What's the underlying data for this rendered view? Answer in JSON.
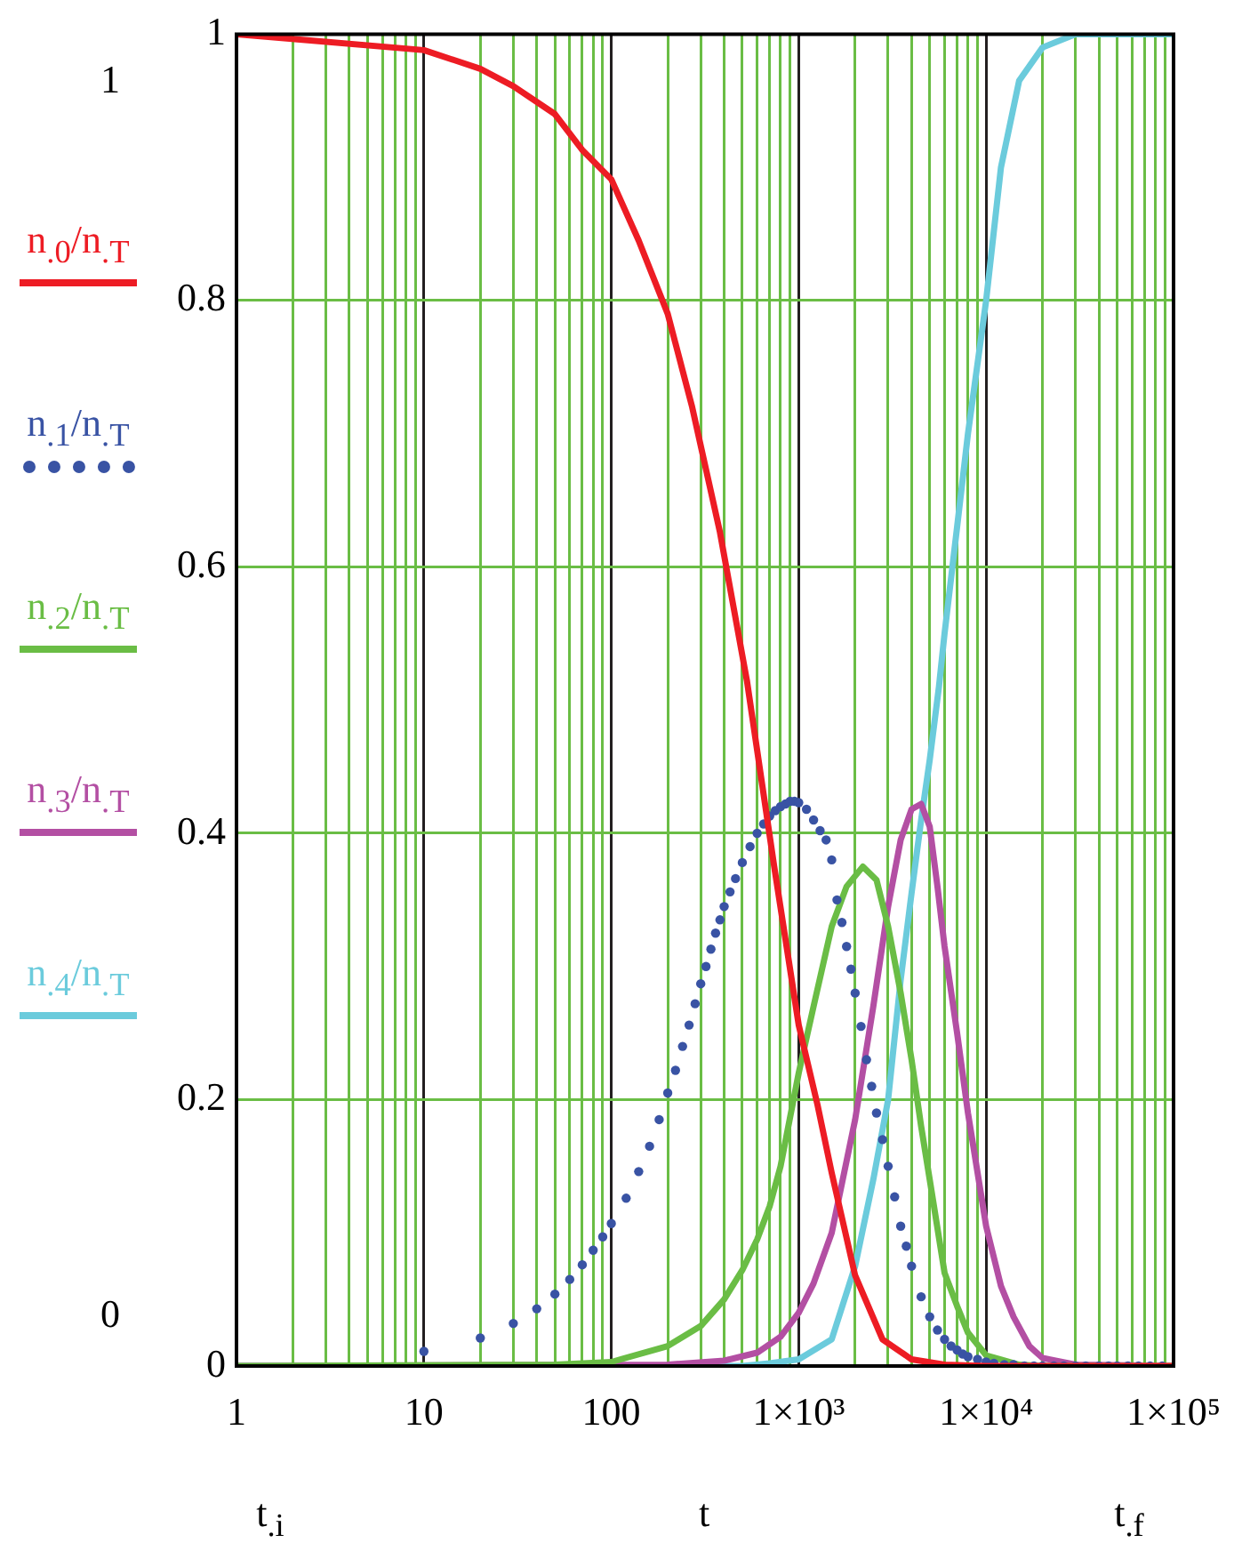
{
  "chart_data": {
    "type": "line",
    "xlabel": "t",
    "log": "x",
    "grid": true,
    "legend": "left",
    "marker": "none",
    "line_style": "solid",
    "xlim": [
      1,
      100000
    ],
    "xticks": [
      1,
      {
        "value": 2,
        "label": null
      },
      {
        "value": 3,
        "label": null
      },
      {
        "value": 4,
        "label": null
      },
      {
        "value": 5,
        "label": null
      },
      {
        "value": 6,
        "label": null
      },
      {
        "value": 7,
        "label": null
      },
      {
        "value": 8,
        "label": null
      },
      {
        "value": 9,
        "label": null
      },
      10,
      {
        "value": 20,
        "label": null
      },
      {
        "value": 30,
        "label": null
      },
      {
        "value": 40,
        "label": null
      },
      {
        "value": 50,
        "label": null
      },
      {
        "value": 60,
        "label": null
      },
      {
        "value": 70,
        "label": null
      },
      {
        "value": 80,
        "label": null
      },
      {
        "value": 90,
        "label": null
      },
      100,
      {
        "value": 200,
        "label": null
      },
      {
        "value": 300,
        "label": null
      },
      {
        "value": 400,
        "label": null
      },
      {
        "value": 500,
        "label": null
      },
      {
        "value": 600,
        "label": null
      },
      {
        "value": 700,
        "label": null
      },
      {
        "value": 800,
        "label": null
      },
      {
        "value": 900,
        "label": null
      },
      {
        "value": 1000,
        "label": "1×10³"
      },
      {
        "value": 2000,
        "label": null
      },
      {
        "value": 3000,
        "label": null
      },
      {
        "value": 4000,
        "label": null
      },
      {
        "value": 5000,
        "label": null
      },
      {
        "value": 6000,
        "label": null
      },
      {
        "value": 7000,
        "label": null
      },
      {
        "value": 8000,
        "label": null
      },
      {
        "value": 9000,
        "label": null
      },
      {
        "value": 10000,
        "label": "1×10⁴"
      },
      {
        "value": 20000,
        "label": null
      },
      {
        "value": 30000,
        "label": null
      },
      {
        "value": 40000,
        "label": null
      },
      {
        "value": 50000,
        "label": null
      },
      {
        "value": 60000,
        "label": null
      },
      {
        "value": 70000,
        "label": null
      },
      {
        "value": 80000,
        "label": null
      },
      {
        "value": 90000,
        "label": null
      },
      {
        "value": 100000,
        "label": "1×10⁵"
      }
    ],
    "ylim": [
      0,
      1
    ],
    "yticks": [
      0,
      0.2,
      0.4,
      0.6,
      0.8,
      1
    ],
    "annotations": [
      "1",
      "0",
      "t$_{.i}$",
      "t$_{.f}$"
    ],
    "series": [
      {
        "name": "n$_{.0}$/n$_{.T}$",
        "color": "#ed1c24",
        "x": [
          1,
          10,
          20,
          30,
          50,
          70,
          100,
          140,
          200,
          270,
          380,
          530,
          740,
          1000,
          1260,
          1500,
          2000,
          2800,
          4000,
          6000,
          10000,
          100000
        ],
        "values": [
          1,
          0.988,
          0.974,
          0.961,
          0.94,
          0.913,
          0.891,
          0.845,
          0.79,
          0.72,
          0.626,
          0.514,
          0.375,
          0.256,
          0.196,
          0.145,
          0.068,
          0.02,
          0.005,
          0.001,
          0,
          0
        ]
      },
      {
        "name": "n$_{.1}$/n$_{.T}$",
        "color": "#3953a4",
        "type": "scatter",
        "marker": "circle",
        "x": [
          10,
          20,
          30,
          40,
          50,
          60,
          70,
          80,
          90,
          100,
          120,
          140,
          160,
          180,
          200,
          220,
          240,
          260,
          280,
          300,
          320,
          340,
          360,
          380,
          400,
          430,
          460,
          500,
          550,
          600,
          650,
          700,
          750,
          800,
          850,
          900,
          950,
          1000,
          1100,
          1200,
          1300,
          1400,
          1500,
          1600,
          1700,
          1800,
          1900,
          2000,
          2150,
          2300,
          2450,
          2600,
          2800,
          3000,
          3250,
          3500,
          3750,
          4000,
          4500,
          5000,
          5500,
          6000,
          6500,
          7000,
          7500,
          8000,
          9000,
          10000,
          11000,
          12500,
          14000,
          16000,
          18000,
          20000,
          23000,
          26000,
          30000,
          34000,
          40000,
          45000,
          50000,
          57000,
          65000,
          75000,
          87000
        ],
        "values": [
          0.011,
          0.021,
          0.032,
          0.043,
          0.054,
          0.065,
          0.076,
          0.087,
          0.097,
          0.107,
          0.126,
          0.146,
          0.165,
          0.185,
          0.205,
          0.222,
          0.24,
          0.256,
          0.272,
          0.287,
          0.3,
          0.313,
          0.325,
          0.335,
          0.345,
          0.356,
          0.366,
          0.378,
          0.39,
          0.4,
          0.407,
          0.413,
          0.417,
          0.42,
          0.422,
          0.424,
          0.424,
          0.423,
          0.418,
          0.41,
          0.402,
          0.395,
          0.38,
          0.35,
          0.333,
          0.315,
          0.298,
          0.28,
          0.255,
          0.23,
          0.21,
          0.19,
          0.17,
          0.15,
          0.127,
          0.105,
          0.09,
          0.075,
          0.052,
          0.037,
          0.027,
          0.02,
          0.015,
          0.012,
          0.009,
          0.007,
          0.005,
          0.003,
          0.002,
          0.001,
          0.001,
          0,
          0,
          0,
          0,
          0,
          0,
          0,
          0,
          0,
          0,
          0,
          0,
          0,
          0
        ]
      },
      {
        "name": "n$_{.2}$/n$_{.T}$",
        "color": "#6abd45",
        "x": [
          1,
          50,
          100,
          200,
          300,
          400,
          500,
          600,
          700,
          800,
          1000,
          1200,
          1500,
          1800,
          2200,
          2600,
          3000,
          3500,
          4000,
          4500,
          5000,
          6000,
          7000,
          8000,
          10000,
          15000,
          20000,
          100000
        ],
        "values": [
          0,
          0.001,
          0.003,
          0.015,
          0.03,
          0.05,
          0.072,
          0.095,
          0.12,
          0.15,
          0.22,
          0.27,
          0.33,
          0.36,
          0.375,
          0.365,
          0.33,
          0.28,
          0.23,
          0.18,
          0.14,
          0.07,
          0.045,
          0.025,
          0.008,
          0.001,
          0,
          0
        ]
      },
      {
        "name": "n$_{.3}$/n$_{.T}$",
        "color": "#b34fa3",
        "x": [
          1,
          200,
          400,
          600,
          800,
          1000,
          1200,
          1500,
          2000,
          2500,
          3000,
          3500,
          4000,
          4500,
          5000,
          5500,
          6000,
          7000,
          8000,
          10000,
          12000,
          14000,
          17000,
          20000,
          30000,
          100000
        ],
        "values": [
          0,
          0.001,
          0.004,
          0.01,
          0.022,
          0.04,
          0.062,
          0.1,
          0.185,
          0.27,
          0.345,
          0.395,
          0.418,
          0.422,
          0.405,
          0.36,
          0.315,
          0.25,
          0.19,
          0.105,
          0.06,
          0.037,
          0.015,
          0.006,
          0.001,
          0
        ]
      },
      {
        "name": "n$_{.4}$/n$_{.T}$",
        "color": "#6bcbdc",
        "x": [
          1,
          500,
          700,
          1000,
          1500,
          2000,
          2500,
          3000,
          3500,
          4000,
          4500,
          5000,
          5600,
          6000,
          7000,
          8000,
          10000,
          12000,
          15000,
          20000,
          30000,
          100000
        ],
        "values": [
          0,
          0,
          0.002,
          0.005,
          0.02,
          0.075,
          0.14,
          0.2,
          0.29,
          0.355,
          0.41,
          0.455,
          0.51,
          0.55,
          0.63,
          0.7,
          0.8,
          0.9,
          0.965,
          0.99,
          1,
          1
        ]
      }
    ]
  }
}
